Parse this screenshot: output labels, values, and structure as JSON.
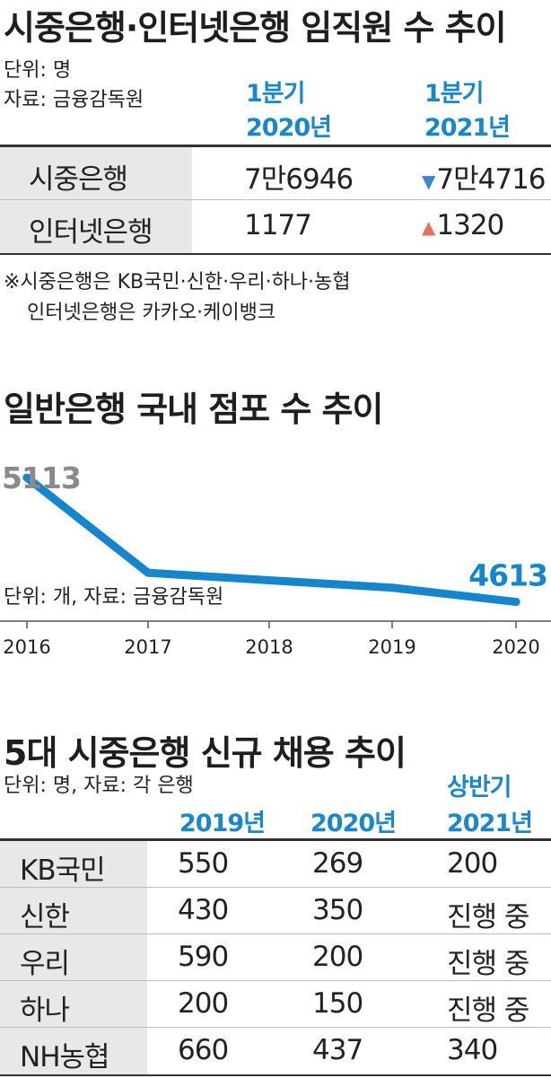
{
  "section1": {
    "title": "시중은행·인터넷은행 임직원 수 추이",
    "unit": "단위: 명",
    "source": "자료: 금융감독원",
    "col1_header": [
      "1분기",
      "2020년"
    ],
    "col2_header": [
      "1분기",
      "2021년"
    ],
    "rows": [
      {
        "label": "시중은행",
        "v2020": "7만6946",
        "v2021": "7만4716",
        "trend": "down",
        "trend_color": "#3a86c8"
      },
      {
        "label": "인터넷은행",
        "v2020": "1177",
        "v2021": "1320",
        "trend": "up",
        "trend_color": "#e8705a"
      }
    ],
    "note_line1": "※시중은행은 KB국민·신한·우리·하나·농협",
    "note_line2": "인터넷은행은 카카오·케이뱅크"
  },
  "section2": {
    "title": "일반은행 국내 점포 수 추이",
    "unit_source": "단위: 개, 자료: 금융감독원"
  },
  "chart_data": {
    "type": "line",
    "title": "일반은행 국내 점포 수 추이",
    "x": [
      "2016",
      "2017",
      "2018",
      "2019",
      "2020"
    ],
    "series": [
      {
        "values": [
          5113,
          4730,
          4700,
          4670,
          4613
        ]
      }
    ],
    "data_labels": {
      "first": "5113",
      "last": "4613"
    },
    "ylim": [
      4550,
      5200
    ],
    "line_color": "#1686cc",
    "first_label_color": "#8a8a8a",
    "last_label_color": "#1686cc",
    "grid": false
  },
  "section3": {
    "title": "5대 시중은행 신규 채용 추이",
    "unit_source": "단위: 명, 자료: 각 은행",
    "headers": [
      [
        "2019년"
      ],
      [
        "2020년"
      ],
      [
        "상반기",
        "2021년"
      ]
    ],
    "rows": [
      {
        "label": "KB국민",
        "y2019": "550",
        "y2020": "269",
        "y2021": "200"
      },
      {
        "label": "신한",
        "y2019": "430",
        "y2020": "350",
        "y2021": "진행 중"
      },
      {
        "label": "우리",
        "y2019": "590",
        "y2020": "200",
        "y2021": "진행 중"
      },
      {
        "label": "하나",
        "y2019": "200",
        "y2020": "150",
        "y2021": "진행 중"
      },
      {
        "label": "NH농협",
        "y2019": "660",
        "y2020": "437",
        "y2021": "340"
      }
    ]
  }
}
